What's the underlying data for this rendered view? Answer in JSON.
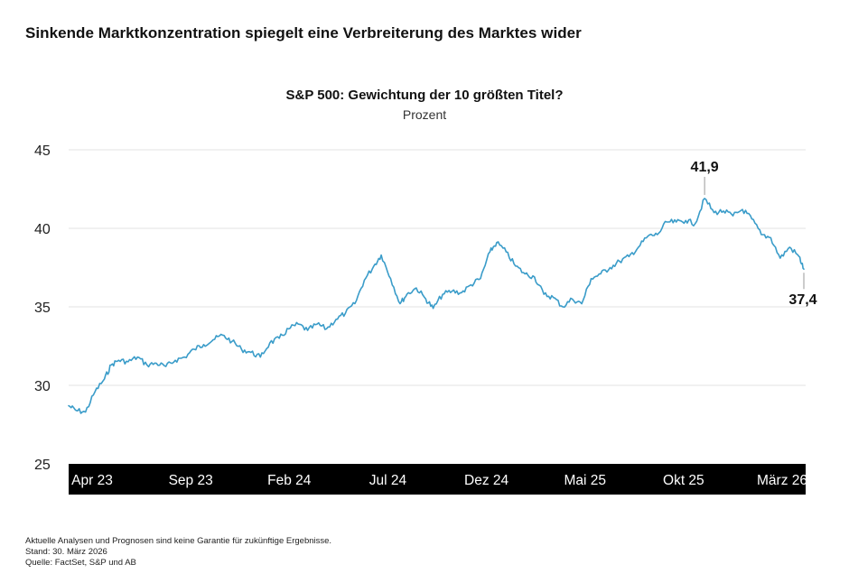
{
  "headline": "Sinkende Marktkonzentration spiegelt eine Verbreiterung des Marktes wider",
  "chart_data": {
    "type": "line",
    "title": "S&P 500: Gewichtung der 10 größten Titel?",
    "subtitle": "Prozent",
    "xlabel": "",
    "ylabel": "",
    "ylim": [
      25,
      45
    ],
    "yticks": [
      "45",
      "40",
      "35",
      "30",
      "25"
    ],
    "xticks": [
      "Apr 23",
      "Sep 23",
      "Feb 24",
      "Jul 24",
      "Dez 24",
      "Mai 25",
      "Okt 25",
      "März 26"
    ],
    "grid": true,
    "x_start": "2023-04-03",
    "x_end": "2026-03-27",
    "series": [
      {
        "color": "#3a9cc9",
        "points": [
          [
            "2023-04-03",
            28.7
          ],
          [
            "2023-04-14",
            28.4
          ],
          [
            "2023-04-28",
            28.3
          ],
          [
            "2023-05-12",
            29.6
          ],
          [
            "2023-05-26",
            30.4
          ],
          [
            "2023-06-05",
            31.3
          ],
          [
            "2023-06-16",
            31.6
          ],
          [
            "2023-06-30",
            31.5
          ],
          [
            "2023-07-14",
            31.8
          ],
          [
            "2023-07-28",
            31.3
          ],
          [
            "2023-08-11",
            31.4
          ],
          [
            "2023-08-25",
            31.2
          ],
          [
            "2023-09-08",
            31.6
          ],
          [
            "2023-09-22",
            31.8
          ],
          [
            "2023-10-06",
            32.3
          ],
          [
            "2023-10-20",
            32.6
          ],
          [
            "2023-11-03",
            32.9
          ],
          [
            "2023-11-17",
            33.2
          ],
          [
            "2023-12-01",
            32.8
          ],
          [
            "2023-12-15",
            32.3
          ],
          [
            "2023-12-29",
            32.1
          ],
          [
            "2024-01-12",
            31.8
          ],
          [
            "2024-01-26",
            32.7
          ],
          [
            "2024-02-09",
            33.0
          ],
          [
            "2024-02-23",
            33.6
          ],
          [
            "2024-03-08",
            33.9
          ],
          [
            "2024-03-22",
            33.5
          ],
          [
            "2024-04-05",
            33.9
          ],
          [
            "2024-04-19",
            33.6
          ],
          [
            "2024-05-03",
            34.2
          ],
          [
            "2024-05-17",
            34.6
          ],
          [
            "2024-05-31",
            35.2
          ],
          [
            "2024-06-14",
            36.7
          ],
          [
            "2024-06-28",
            37.6
          ],
          [
            "2024-07-09",
            38.3
          ],
          [
            "2024-07-23",
            36.8
          ],
          [
            "2024-08-06",
            35.2
          ],
          [
            "2024-08-16",
            35.8
          ],
          [
            "2024-08-30",
            36.2
          ],
          [
            "2024-09-13",
            35.5
          ],
          [
            "2024-09-24",
            34.9
          ],
          [
            "2024-10-08",
            35.8
          ],
          [
            "2024-10-22",
            36.0
          ],
          [
            "2024-11-05",
            35.9
          ],
          [
            "2024-11-19",
            36.4
          ],
          [
            "2024-12-03",
            36.8
          ],
          [
            "2024-12-17",
            38.5
          ],
          [
            "2024-12-27",
            39.1
          ],
          [
            "2025-01-10",
            38.5
          ],
          [
            "2025-01-24",
            37.6
          ],
          [
            "2025-02-07",
            37.1
          ],
          [
            "2025-02-21",
            36.9
          ],
          [
            "2025-03-07",
            35.8
          ],
          [
            "2025-03-21",
            35.6
          ],
          [
            "2025-04-04",
            35.0
          ],
          [
            "2025-04-18",
            35.5
          ],
          [
            "2025-05-02",
            35.2
          ],
          [
            "2025-05-16",
            36.8
          ],
          [
            "2025-05-30",
            37.1
          ],
          [
            "2025-06-13",
            37.5
          ],
          [
            "2025-06-27",
            37.9
          ],
          [
            "2025-07-11",
            38.2
          ],
          [
            "2025-07-25",
            38.8
          ],
          [
            "2025-08-08",
            39.5
          ],
          [
            "2025-08-22",
            39.6
          ],
          [
            "2025-09-05",
            40.4
          ],
          [
            "2025-09-19",
            40.4
          ],
          [
            "2025-10-03",
            40.5
          ],
          [
            "2025-10-17",
            40.3
          ],
          [
            "2025-10-31",
            41.9
          ],
          [
            "2025-11-14",
            41.0
          ],
          [
            "2025-11-28",
            41.1
          ],
          [
            "2025-12-12",
            40.8
          ],
          [
            "2025-12-26",
            41.2
          ],
          [
            "2026-01-09",
            40.6
          ],
          [
            "2026-01-23",
            39.6
          ],
          [
            "2026-02-06",
            39.4
          ],
          [
            "2026-02-20",
            38.1
          ],
          [
            "2026-03-06",
            38.8
          ],
          [
            "2026-03-20",
            38.2
          ],
          [
            "2026-03-27",
            37.4
          ]
        ]
      }
    ],
    "annotations": [
      {
        "label": "41,9",
        "x": "2025-10-31",
        "y": 41.9,
        "placement": "above"
      },
      {
        "label": "37,4",
        "x": "2026-03-27",
        "y": 37.4,
        "placement": "below"
      }
    ]
  },
  "footer": {
    "disclaimer": "Aktuelle Analysen und Prognosen sind keine Garantie für zukünftige Ergebnisse.",
    "date": "Stand: 30. März 2026",
    "source": "Quelle: FactSet, S&P und AB"
  }
}
